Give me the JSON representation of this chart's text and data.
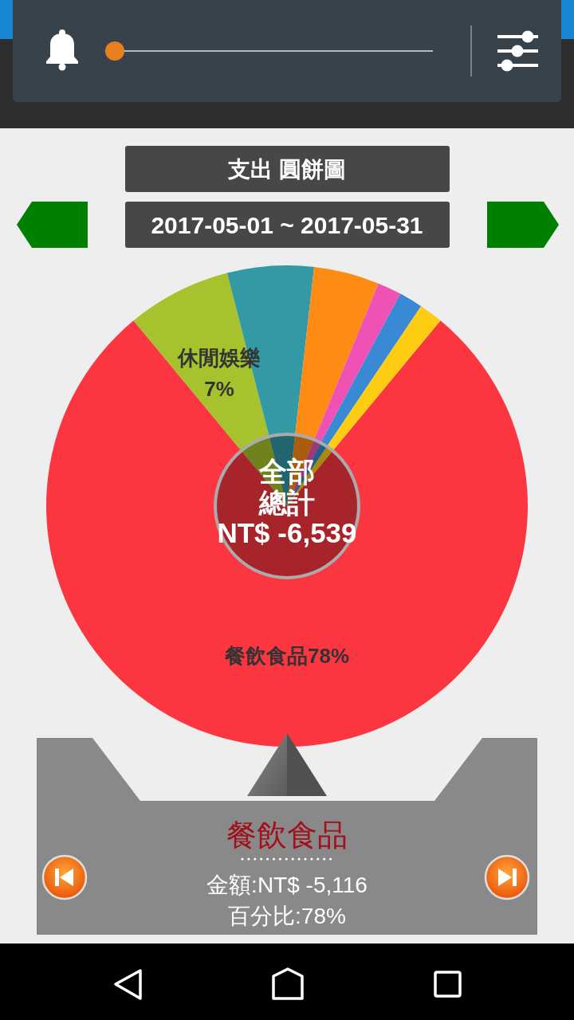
{
  "chart_data": {
    "type": "donut",
    "title": "支出 圓餅圖",
    "subtitle": "2017-05-01 ~ 2017-05-31",
    "categories": [
      "餐飲食品",
      "休閒娛樂",
      null,
      null,
      null,
      null,
      null
    ],
    "values": [
      78,
      7,
      5.8,
      4.4,
      1.6,
      1.6,
      1.6
    ],
    "colors": [
      "#fb3640",
      "#a6c22c",
      "#3299a5",
      "#fd8b14",
      "#ef52b4",
      "#3a89d4",
      "#fecc12"
    ],
    "value_labels": [
      "78%",
      "7%",
      null,
      null,
      null,
      null,
      null
    ],
    "annotations": [
      "全部",
      "總計",
      "NT$ -6,539",
      "餐飲食品",
      "金額:NT$ -5,116",
      "百分比:78%"
    ]
  }
}
